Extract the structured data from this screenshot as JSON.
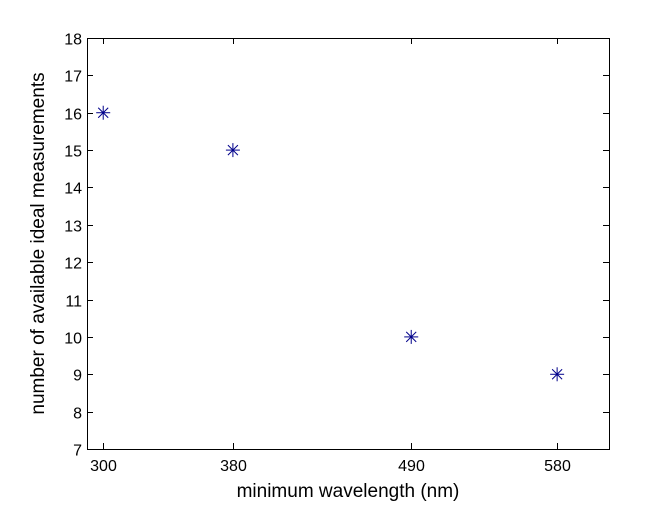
{
  "chart_data": {
    "type": "scatter",
    "title": "",
    "xlabel": "minimum wavelength (nm)",
    "ylabel": "number of available ideal measurements",
    "x": [
      300,
      380,
      490,
      580
    ],
    "y": [
      16,
      15,
      10,
      9
    ],
    "xlim": [
      290,
      612
    ],
    "ylim": [
      7,
      18
    ],
    "xticks": [
      300,
      380,
      490,
      580
    ],
    "yticks": [
      7,
      8,
      9,
      10,
      11,
      12,
      13,
      14,
      15,
      16,
      17,
      18
    ],
    "marker": "asterisk",
    "marker_color": "#00008b",
    "grid": false,
    "legend": "none"
  }
}
